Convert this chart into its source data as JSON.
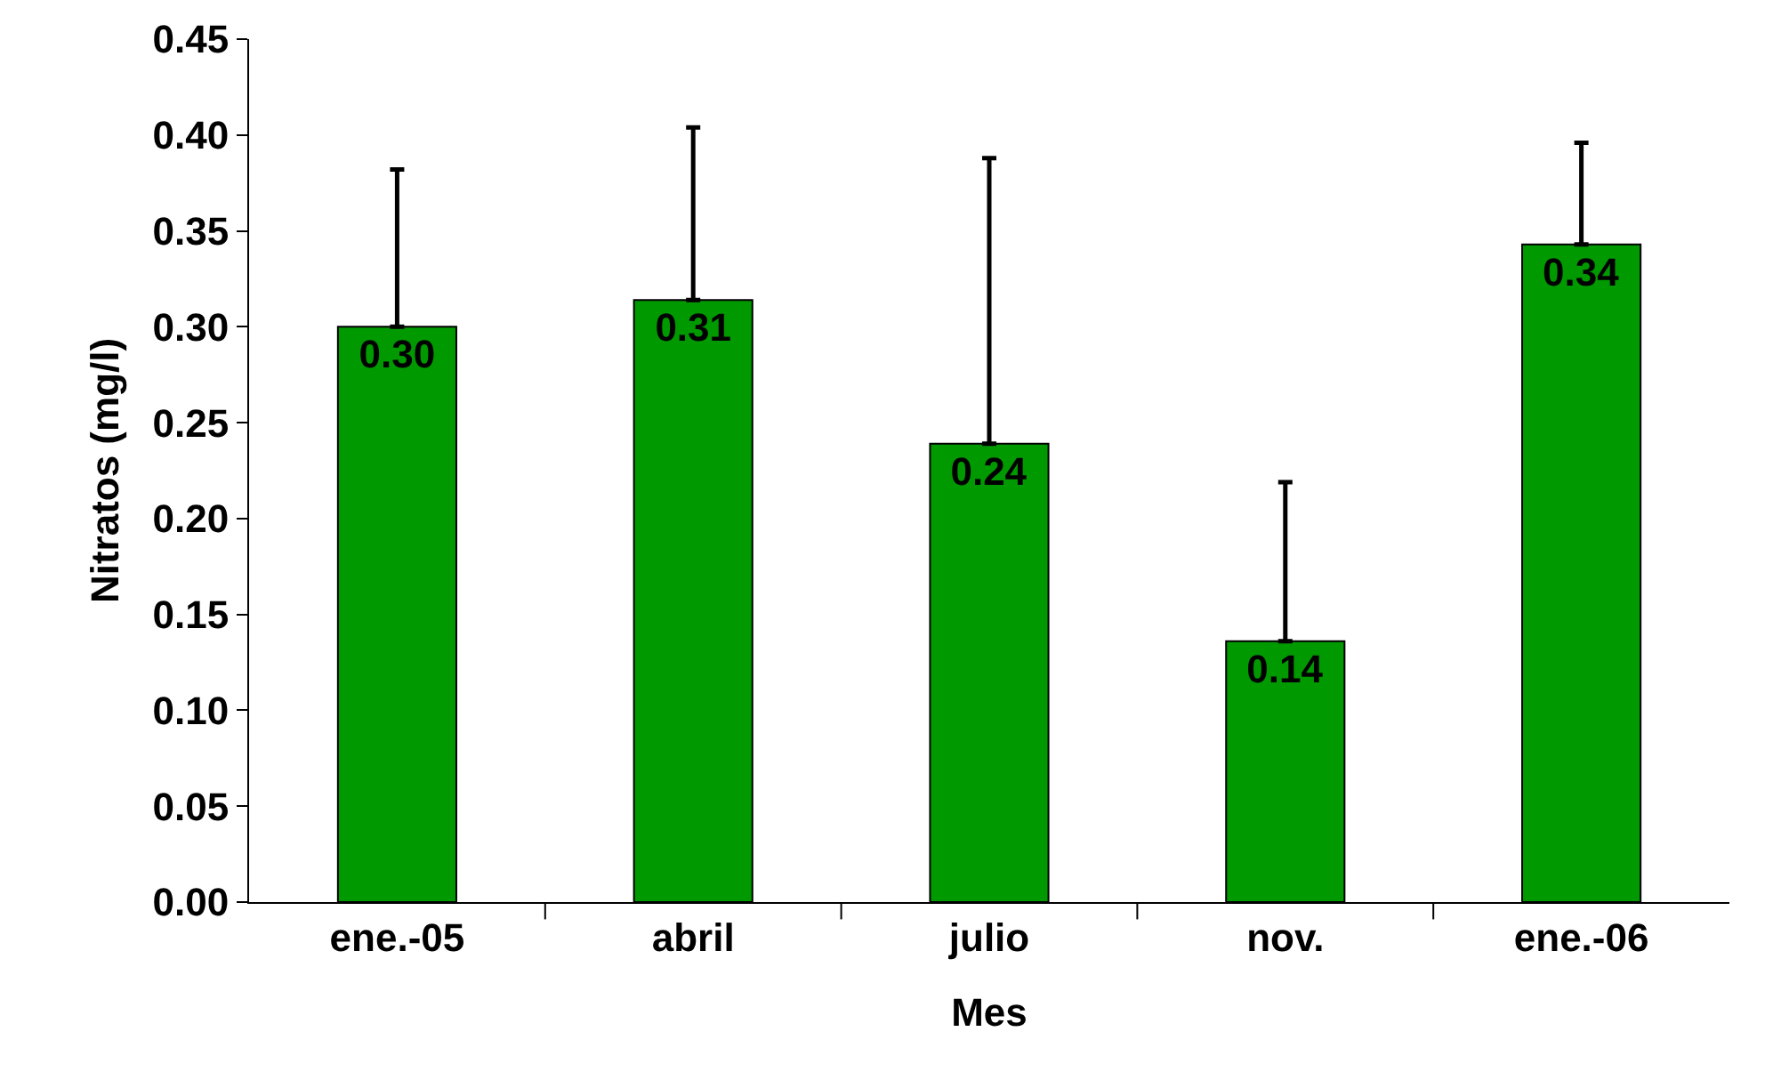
{
  "chart_data": {
    "type": "bar",
    "xlabel": "Mes",
    "ylabel": "Nitratos (mg/l)",
    "categories": [
      "ene.-05",
      "abril",
      "julio",
      "nov.",
      "ene.-06"
    ],
    "values": [
      0.3,
      0.314,
      0.239,
      0.136,
      0.343
    ],
    "value_labels": [
      "0.30",
      "0.31",
      "0.24",
      "0.14",
      "0.34"
    ],
    "errors": [
      [
        0.3,
        0.382
      ],
      [
        0.314,
        0.404
      ],
      [
        0.239,
        0.388
      ],
      [
        0.136,
        0.219
      ],
      [
        0.343,
        0.396
      ]
    ],
    "color": "#009900",
    "ylim": [
      0,
      0.45
    ],
    "yticks": [
      {
        "value": 0,
        "label": "0.00"
      },
      {
        "value": 0.05,
        "label": "0.05"
      },
      {
        "value": 0.1,
        "label": "0.10"
      },
      {
        "value": 0.15,
        "label": "0.15"
      },
      {
        "value": 0.2,
        "label": "0.20"
      },
      {
        "value": 0.25,
        "label": "0.25"
      },
      {
        "value": 0.3,
        "label": "0.30"
      },
      {
        "value": 0.35,
        "label": "0.35"
      },
      {
        "value": 0.4,
        "label": "0.40"
      },
      {
        "value": 0.45,
        "label": "0.45"
      }
    ],
    "grid": false
  }
}
